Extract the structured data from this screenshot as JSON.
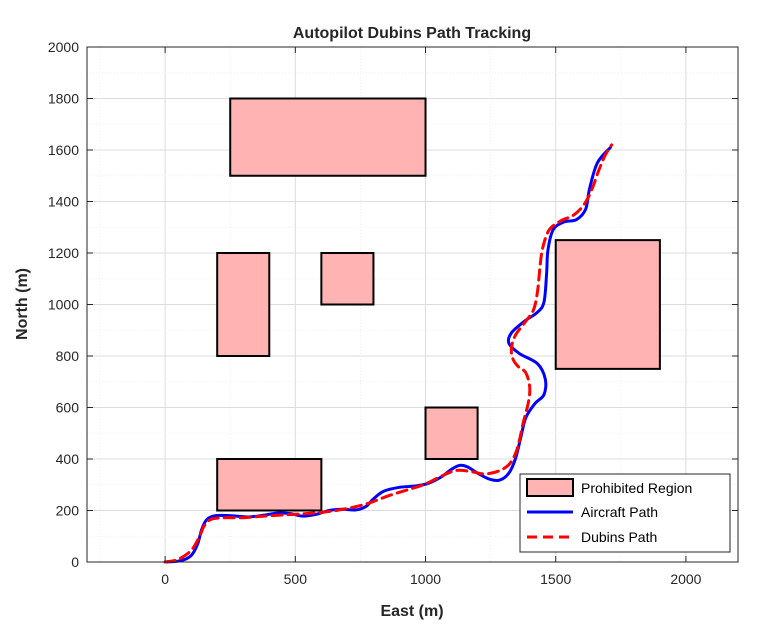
{
  "chart_data": {
    "type": "line",
    "title": "Autopilot Dubins Path Tracking",
    "xlabel": "East (m)",
    "ylabel": "North (m)",
    "xlim": [
      -300,
      2200
    ],
    "ylim": [
      0,
      2000
    ],
    "xticks": [
      0,
      500,
      1000,
      1500,
      2000
    ],
    "yticks": [
      0,
      200,
      400,
      600,
      800,
      1000,
      1200,
      1400,
      1600,
      1800,
      2000
    ],
    "grid": true,
    "legend_location": "bottom-right",
    "legend": [
      "Prohibited Region",
      "Aircraft Path",
      "Dubins Path"
    ],
    "colors": {
      "prohibited_fill": "#ffb3b3",
      "prohibited_edge": "#000000",
      "aircraft": "#0000ff",
      "dubins": "#ff0000",
      "grid": "#e6e6e6",
      "axis": "#262626"
    },
    "prohibited_regions": [
      {
        "x": [
          250,
          1000
        ],
        "y": [
          1500,
          1800
        ]
      },
      {
        "x": [
          200,
          400
        ],
        "y": [
          800,
          1200
        ]
      },
      {
        "x": [
          600,
          800
        ],
        "y": [
          1000,
          1200
        ]
      },
      {
        "x": [
          1500,
          1900
        ],
        "y": [
          750,
          1250
        ]
      },
      {
        "x": [
          1000,
          1200
        ],
        "y": [
          400,
          600
        ]
      },
      {
        "x": [
          200,
          600
        ],
        "y": [
          200,
          400
        ]
      }
    ],
    "series": [
      {
        "name": "Aircraft Path",
        "style": "solid",
        "points": [
          [
            0,
            0
          ],
          [
            60,
            5
          ],
          [
            100,
            25
          ],
          [
            125,
            70
          ],
          [
            140,
            125
          ],
          [
            160,
            165
          ],
          [
            195,
            180
          ],
          [
            250,
            180
          ],
          [
            320,
            175
          ],
          [
            380,
            182
          ],
          [
            430,
            190
          ],
          [
            480,
            188
          ],
          [
            530,
            178
          ],
          [
            580,
            185
          ],
          [
            630,
            200
          ],
          [
            680,
            205
          ],
          [
            730,
            202
          ],
          [
            770,
            215
          ],
          [
            800,
            245
          ],
          [
            840,
            275
          ],
          [
            900,
            290
          ],
          [
            960,
            295
          ],
          [
            1010,
            305
          ],
          [
            1060,
            330
          ],
          [
            1100,
            360
          ],
          [
            1130,
            375
          ],
          [
            1160,
            370
          ],
          [
            1200,
            345
          ],
          [
            1245,
            322
          ],
          [
            1285,
            318
          ],
          [
            1320,
            345
          ],
          [
            1345,
            400
          ],
          [
            1365,
            480
          ],
          [
            1385,
            560
          ],
          [
            1420,
            615
          ],
          [
            1455,
            650
          ],
          [
            1460,
            710
          ],
          [
            1430,
            770
          ],
          [
            1360,
            810
          ],
          [
            1320,
            850
          ],
          [
            1330,
            890
          ],
          [
            1380,
            935
          ],
          [
            1430,
            970
          ],
          [
            1455,
            1010
          ],
          [
            1465,
            1120
          ],
          [
            1470,
            1210
          ],
          [
            1490,
            1290
          ],
          [
            1530,
            1320
          ],
          [
            1580,
            1330
          ],
          [
            1615,
            1370
          ],
          [
            1630,
            1450
          ],
          [
            1660,
            1550
          ],
          [
            1710,
            1610
          ]
        ]
      },
      {
        "name": "Dubins Path",
        "style": "dashed",
        "points": [
          [
            0,
            0
          ],
          [
            50,
            10
          ],
          [
            100,
            45
          ],
          [
            130,
            95
          ],
          [
            150,
            140
          ],
          [
            175,
            165
          ],
          [
            225,
            172
          ],
          [
            300,
            172
          ],
          [
            380,
            178
          ],
          [
            460,
            183
          ],
          [
            540,
            188
          ],
          [
            620,
            195
          ],
          [
            700,
            208
          ],
          [
            780,
            228
          ],
          [
            860,
            258
          ],
          [
            940,
            283
          ],
          [
            1000,
            303
          ],
          [
            1060,
            333
          ],
          [
            1115,
            355
          ],
          [
            1170,
            352
          ],
          [
            1225,
            342
          ],
          [
            1280,
            353
          ],
          [
            1320,
            378
          ],
          [
            1345,
            420
          ],
          [
            1360,
            470
          ],
          [
            1375,
            540
          ],
          [
            1395,
            620
          ],
          [
            1400,
            680
          ],
          [
            1385,
            735
          ],
          [
            1355,
            760
          ],
          [
            1335,
            790
          ],
          [
            1330,
            830
          ],
          [
            1345,
            880
          ],
          [
            1385,
            935
          ],
          [
            1415,
            980
          ],
          [
            1430,
            1050
          ],
          [
            1440,
            1150
          ],
          [
            1450,
            1220
          ],
          [
            1475,
            1290
          ],
          [
            1520,
            1325
          ],
          [
            1570,
            1348
          ],
          [
            1610,
            1390
          ],
          [
            1640,
            1450
          ],
          [
            1665,
            1520
          ],
          [
            1690,
            1580
          ],
          [
            1715,
            1620
          ]
        ]
      }
    ]
  }
}
